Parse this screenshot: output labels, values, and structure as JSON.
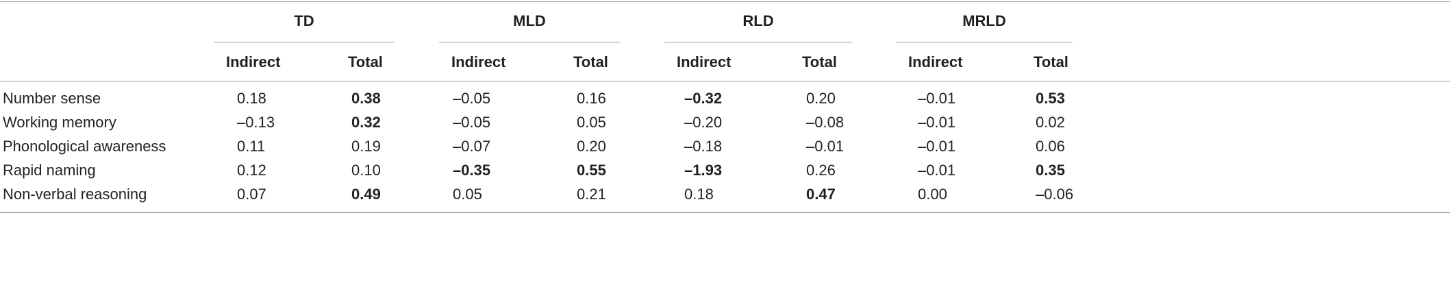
{
  "groups": [
    {
      "name": "TD",
      "indirect_label": "Indirect",
      "total_label": "Total"
    },
    {
      "name": "MLD",
      "indirect_label": "Indirect",
      "total_label": "Total"
    },
    {
      "name": "RLD",
      "indirect_label": "Indirect",
      "total_label": "Total"
    },
    {
      "name": "MRLD",
      "indirect_label": "Indirect",
      "total_label": "Total"
    }
  ],
  "rows": [
    {
      "label": "Number sense",
      "cells": [
        {
          "value": "0.18",
          "bold": false
        },
        {
          "value": "0.38",
          "bold": true
        },
        {
          "value": "–0.05",
          "bold": false
        },
        {
          "value": "0.16",
          "bold": false
        },
        {
          "value": "–0.32",
          "bold": true
        },
        {
          "value": "0.20",
          "bold": false
        },
        {
          "value": "–0.01",
          "bold": false
        },
        {
          "value": "0.53",
          "bold": true
        }
      ]
    },
    {
      "label": "Working memory",
      "cells": [
        {
          "value": "–0.13",
          "bold": false
        },
        {
          "value": "0.32",
          "bold": true
        },
        {
          "value": "–0.05",
          "bold": false
        },
        {
          "value": "0.05",
          "bold": false
        },
        {
          "value": "–0.20",
          "bold": false
        },
        {
          "value": "–0.08",
          "bold": false
        },
        {
          "value": "–0.01",
          "bold": false
        },
        {
          "value": "0.02",
          "bold": false
        }
      ]
    },
    {
      "label": "Phonological awareness",
      "cells": [
        {
          "value": "0.11",
          "bold": false
        },
        {
          "value": "0.19",
          "bold": false
        },
        {
          "value": "–0.07",
          "bold": false
        },
        {
          "value": "0.20",
          "bold": false
        },
        {
          "value": "–0.18",
          "bold": false
        },
        {
          "value": "–0.01",
          "bold": false
        },
        {
          "value": "–0.01",
          "bold": false
        },
        {
          "value": "0.06",
          "bold": false
        }
      ]
    },
    {
      "label": "Rapid naming",
      "cells": [
        {
          "value": "0.12",
          "bold": false
        },
        {
          "value": "0.10",
          "bold": false
        },
        {
          "value": "–0.35",
          "bold": true
        },
        {
          "value": "0.55",
          "bold": true
        },
        {
          "value": "–1.93",
          "bold": true
        },
        {
          "value": "0.26",
          "bold": false
        },
        {
          "value": "–0.01",
          "bold": false
        },
        {
          "value": "0.35",
          "bold": true
        }
      ]
    },
    {
      "label": "Non-verbal reasoning",
      "cells": [
        {
          "value": "0.07",
          "bold": false
        },
        {
          "value": "0.49",
          "bold": true
        },
        {
          "value": "0.05",
          "bold": false
        },
        {
          "value": "0.21",
          "bold": false
        },
        {
          "value": "0.18",
          "bold": false
        },
        {
          "value": "0.47",
          "bold": true
        },
        {
          "value": "0.00",
          "bold": false
        },
        {
          "value": "–0.06",
          "bold": false
        }
      ]
    }
  ]
}
